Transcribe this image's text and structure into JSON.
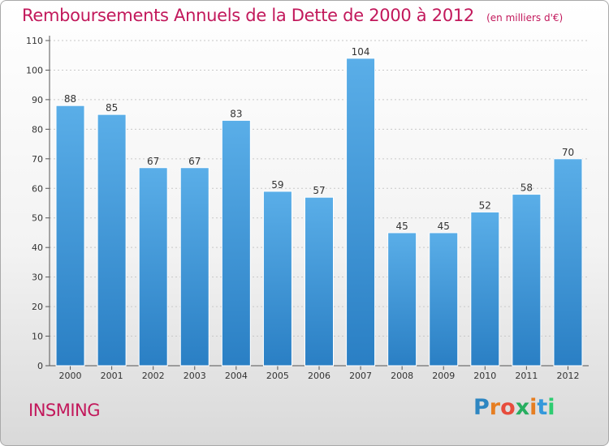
{
  "header": {
    "title": "Remboursements Annuels de la Dette de 2000 à 2012",
    "unit": "(en milliers d'€)"
  },
  "commune": "INSMING",
  "logo": {
    "text": "Proxiti"
  },
  "chart_data": {
    "type": "bar",
    "title": "Remboursements Annuels de la Dette de 2000 à 2012",
    "subtitle": "(en milliers d'€)",
    "categories": [
      "2000",
      "2001",
      "2002",
      "2003",
      "2004",
      "2005",
      "2006",
      "2007",
      "2008",
      "2009",
      "2010",
      "2011",
      "2012"
    ],
    "values": [
      88,
      85,
      67,
      67,
      83,
      59,
      57,
      104,
      45,
      45,
      52,
      58,
      70
    ],
    "xlabel": "",
    "ylabel": "",
    "ylim": [
      0,
      110
    ],
    "yticks": [
      0,
      10,
      20,
      30,
      40,
      50,
      60,
      70,
      80,
      90,
      100,
      110
    ],
    "grid": true,
    "bar_color": "#4fa3e0",
    "bar_color_dark": "#2a7fc4",
    "title_color": "#c2185b"
  }
}
